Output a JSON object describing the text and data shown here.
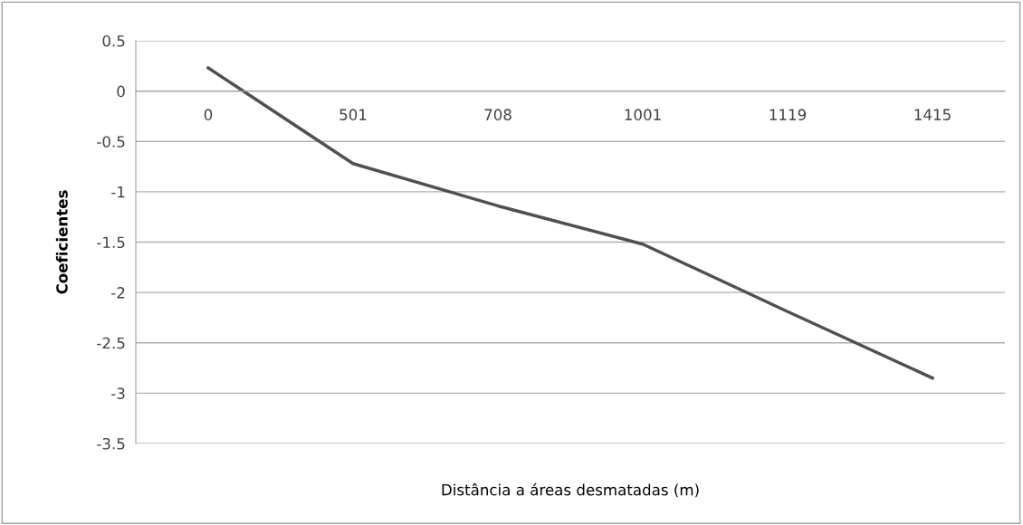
{
  "chart_data": {
    "type": "line",
    "xlabel": "Distância a áreas desmatadas (m)",
    "ylabel": "Coeficientes",
    "categories": [
      "0",
      "501",
      "708",
      "1001",
      "1119",
      "1415"
    ],
    "series": [
      {
        "color": "#505050",
        "values": [
          0.23,
          -0.72,
          -1.14,
          -1.52,
          -2.19,
          -2.85
        ]
      }
    ],
    "ylim": [
      -3.5,
      0.5
    ],
    "yticks": [
      {
        "value": -3.5,
        "label": "-3.5"
      },
      {
        "value": -3,
        "label": "-3"
      },
      {
        "value": -2.5,
        "label": "-2.5"
      },
      {
        "value": -2,
        "label": "-2"
      },
      {
        "value": -1.5,
        "label": "-1.5"
      },
      {
        "value": -1,
        "label": "-1"
      },
      {
        "value": -0.5,
        "label": "-0.5"
      },
      0,
      0.5
    ],
    "grid": "y",
    "marker": "none",
    "line_style": "solid"
  }
}
